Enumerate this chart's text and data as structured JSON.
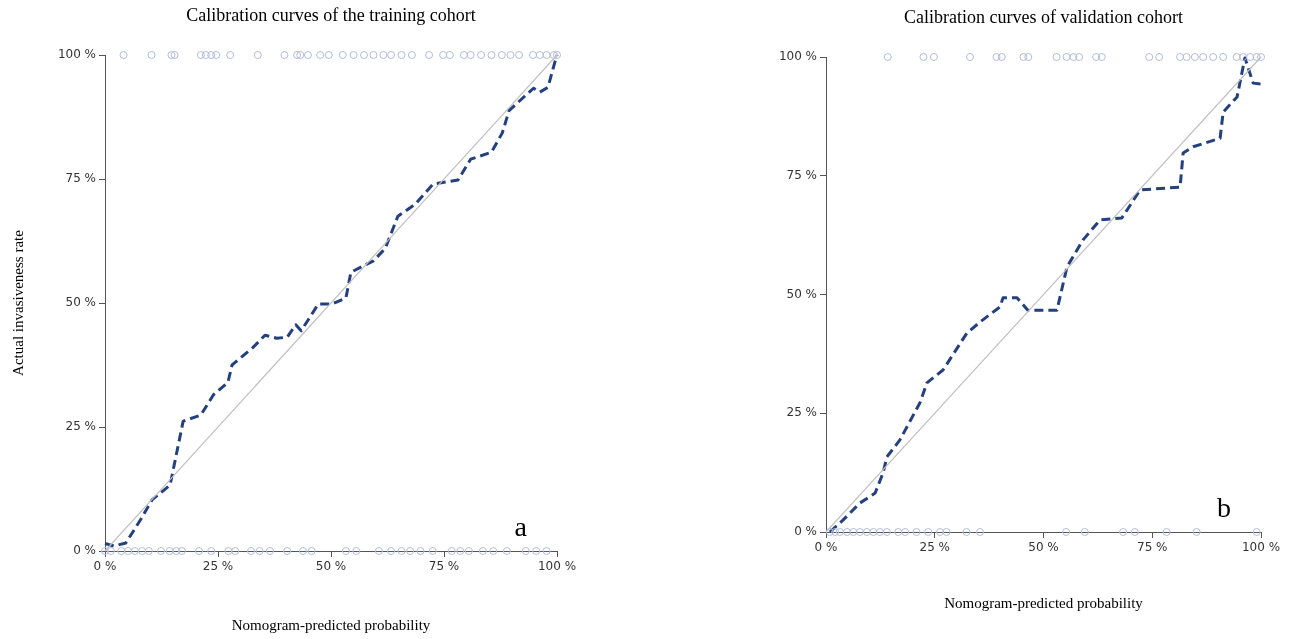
{
  "chart_data": [
    {
      "type": "line",
      "title": "Calibration curves of the training cohort",
      "xlabel": "Nomogram-predicted probability",
      "ylabel": "Actual invasiveness rate",
      "annotations": [
        "a"
      ],
      "grid": false,
      "legend": false,
      "xlim": [
        0,
        100
      ],
      "ylim": [
        0,
        100
      ],
      "xticks": [
        {
          "value": 0,
          "label": "0 %"
        },
        {
          "value": 25,
          "label": "25 %"
        },
        {
          "value": 50,
          "label": "50 %"
        },
        {
          "value": 75,
          "label": "75 %"
        },
        {
          "value": 100,
          "label": "100 %"
        }
      ],
      "yticks": [
        {
          "value": 0,
          "label": "0 %"
        },
        {
          "value": 25,
          "label": "25 %"
        },
        {
          "value": 50,
          "label": "50 %"
        },
        {
          "value": 75,
          "label": "75 %"
        },
        {
          "value": 100,
          "label": "100 %"
        }
      ],
      "series": [
        {
          "type": "scatter",
          "marker": "circle",
          "color": "#b4bdd9",
          "x": [
            4.1,
            10.3,
            14.7,
            15.4,
            21.2,
            22.3,
            23.5,
            24.6,
            27.7,
            33.8,
            39.7,
            42.5,
            43.2,
            44.9,
            47.6,
            49.5,
            52.6,
            55,
            57.3,
            59.4,
            61.6,
            63.3,
            65.6,
            67.9,
            71.7,
            74.8,
            76.3,
            79.4,
            80.9,
            83.2,
            85.5,
            87.8,
            89.7,
            91.6,
            94.7,
            96.2,
            97.7,
            99.3,
            100
          ],
          "values": [
            100,
            100,
            100,
            100,
            100,
            100,
            100,
            100,
            100,
            100,
            100,
            100,
            100,
            100,
            100,
            100,
            100,
            100,
            100,
            100,
            100,
            100,
            100,
            100,
            100,
            100,
            100,
            100,
            100,
            100,
            100,
            100,
            100,
            100,
            100,
            100,
            100,
            100,
            100
          ]
        },
        {
          "type": "scatter",
          "marker": "circle",
          "color": "#b4bdd9",
          "x": [
            0,
            1.3,
            3.6,
            5.1,
            6.6,
            8.2,
            9.7,
            12.4,
            14.3,
            15.8,
            17,
            20.8,
            23.5,
            27.3,
            28.8,
            32.3,
            34.2,
            36.5,
            40.3,
            43.8,
            45.7,
            53.3,
            55.6,
            60.6,
            63.3,
            65.6,
            67.5,
            69.8,
            72.5,
            76.7,
            78.6,
            80.5,
            83.6,
            85.9,
            88.9,
            93.1,
            95.4,
            97.7
          ],
          "values": [
            0,
            0,
            0,
            0,
            0,
            0,
            0,
            0,
            0,
            0,
            0,
            0,
            0,
            0,
            0,
            0,
            0,
            0,
            0,
            0,
            0,
            0,
            0,
            0,
            0,
            0,
            0,
            0,
            0,
            0,
            0,
            0,
            0,
            0,
            0,
            0,
            0,
            0
          ]
        },
        {
          "marker": "none",
          "line_style": "solid",
          "color": "#c0c0c0",
          "x": [
            0,
            100
          ],
          "values": [
            0,
            100
          ]
        },
        {
          "marker": "none",
          "line_style": "dashed",
          "color": "#24407e",
          "x": [
            0,
            2,
            4.6,
            8,
            10.4,
            14.4,
            17.3,
            21.2,
            24,
            27.2,
            28.1,
            32.7,
            35.4,
            38,
            40.3,
            42.2,
            43.4,
            47.2,
            50.2,
            53.3,
            54.4,
            59.4,
            62,
            64.8,
            68.6,
            72.6,
            75.5,
            78.1,
            80.9,
            85.5,
            87.9,
            89.4,
            94.8,
            96.2,
            98,
            99.6,
            100
          ],
          "values": [
            1.5,
            1,
            1.6,
            6.5,
            10.3,
            13.3,
            26.2,
            27.4,
            31.5,
            34,
            37.5,
            41,
            43.5,
            42.9,
            43.1,
            45.6,
            44.4,
            49.8,
            49.8,
            51,
            56.2,
            58.5,
            61,
            67.5,
            69.9,
            74,
            74.4,
            74.8,
            79,
            80.4,
            84.3,
            88.8,
            93.3,
            92.5,
            93.5,
            98.8,
            100
          ]
        }
      ]
    },
    {
      "type": "line",
      "title": "Calibration curves of validation cohort",
      "xlabel": "Nomogram-predicted probability",
      "annotations": [
        "b"
      ],
      "grid": false,
      "legend": false,
      "xlim": [
        0,
        100
      ],
      "ylim": [
        0,
        100
      ],
      "xticks": [
        {
          "value": 0,
          "label": "0 %"
        },
        {
          "value": 25,
          "label": "25 %"
        },
        {
          "value": 50,
          "label": "50 %"
        },
        {
          "value": 75,
          "label": "75 %"
        },
        {
          "value": 100,
          "label": "100 %"
        }
      ],
      "yticks": [
        {
          "value": 0,
          "label": "0 %"
        },
        {
          "value": 25,
          "label": "25 %"
        },
        {
          "value": 50,
          "label": "50 %"
        },
        {
          "value": 75,
          "label": "75 %"
        },
        {
          "value": 100,
          "label": "100 %"
        }
      ],
      "series": [
        {
          "type": "scatter",
          "marker": "circle",
          "color": "#b4bdd9",
          "x": [
            14.2,
            22.4,
            24.8,
            33.1,
            39.2,
            40.4,
            45.4,
            46.5,
            53,
            55.3,
            56.9,
            58.2,
            62.1,
            63.4,
            74.3,
            76.6,
            81.4,
            82.9,
            84.8,
            86.7,
            89,
            91.3,
            94.4,
            95.9,
            97.5,
            99,
            100
          ],
          "values": [
            100,
            100,
            100,
            100,
            100,
            100,
            100,
            100,
            100,
            100,
            100,
            100,
            100,
            100,
            100,
            100,
            100,
            100,
            100,
            100,
            100,
            100,
            100,
            100,
            100,
            100,
            100
          ]
        },
        {
          "type": "scatter",
          "marker": "circle",
          "color": "#b4bdd9",
          "x": [
            0.9,
            2.1,
            3.2,
            4.8,
            6.3,
            7.8,
            9.4,
            10.9,
            12.4,
            14,
            16.6,
            18.2,
            20.8,
            23.5,
            26.2,
            27.7,
            32.3,
            35.4,
            55.2,
            59.5,
            68.3,
            71,
            78.3,
            85.2,
            99
          ],
          "values": [
            0,
            0,
            0,
            0,
            0,
            0,
            0,
            0,
            0,
            0,
            0,
            0,
            0,
            0,
            0,
            0,
            0,
            0,
            0,
            0,
            0,
            0,
            0,
            0,
            0
          ]
        },
        {
          "marker": "none",
          "line_style": "solid",
          "color": "#c0c0c0",
          "x": [
            0,
            100
          ],
          "values": [
            0,
            100
          ]
        },
        {
          "marker": "none",
          "line_style": "dashed",
          "color": "#24407e",
          "x": [
            0.9,
            3.9,
            7.8,
            11.3,
            13.1,
            14,
            17,
            21.6,
            23.2,
            26.9,
            32.4,
            35.4,
            40,
            40.7,
            43.9,
            46.4,
            53.1,
            55.4,
            59.1,
            63,
            68,
            72.2,
            81.4,
            82.1,
            84.4,
            90.6,
            91.3,
            94.5,
            96.3,
            98.2,
            100
          ],
          "values": [
            0,
            2.5,
            6.1,
            8.2,
            12.4,
            15.8,
            19.4,
            27.2,
            31.4,
            34.1,
            41.9,
            44.2,
            47.4,
            49.3,
            49.3,
            46.7,
            46.7,
            55.8,
            61.5,
            65.7,
            66.1,
            72,
            72.6,
            79.8,
            81.1,
            82.9,
            88.4,
            91.6,
            99.8,
            94.5,
            94.3
          ]
        }
      ]
    }
  ]
}
